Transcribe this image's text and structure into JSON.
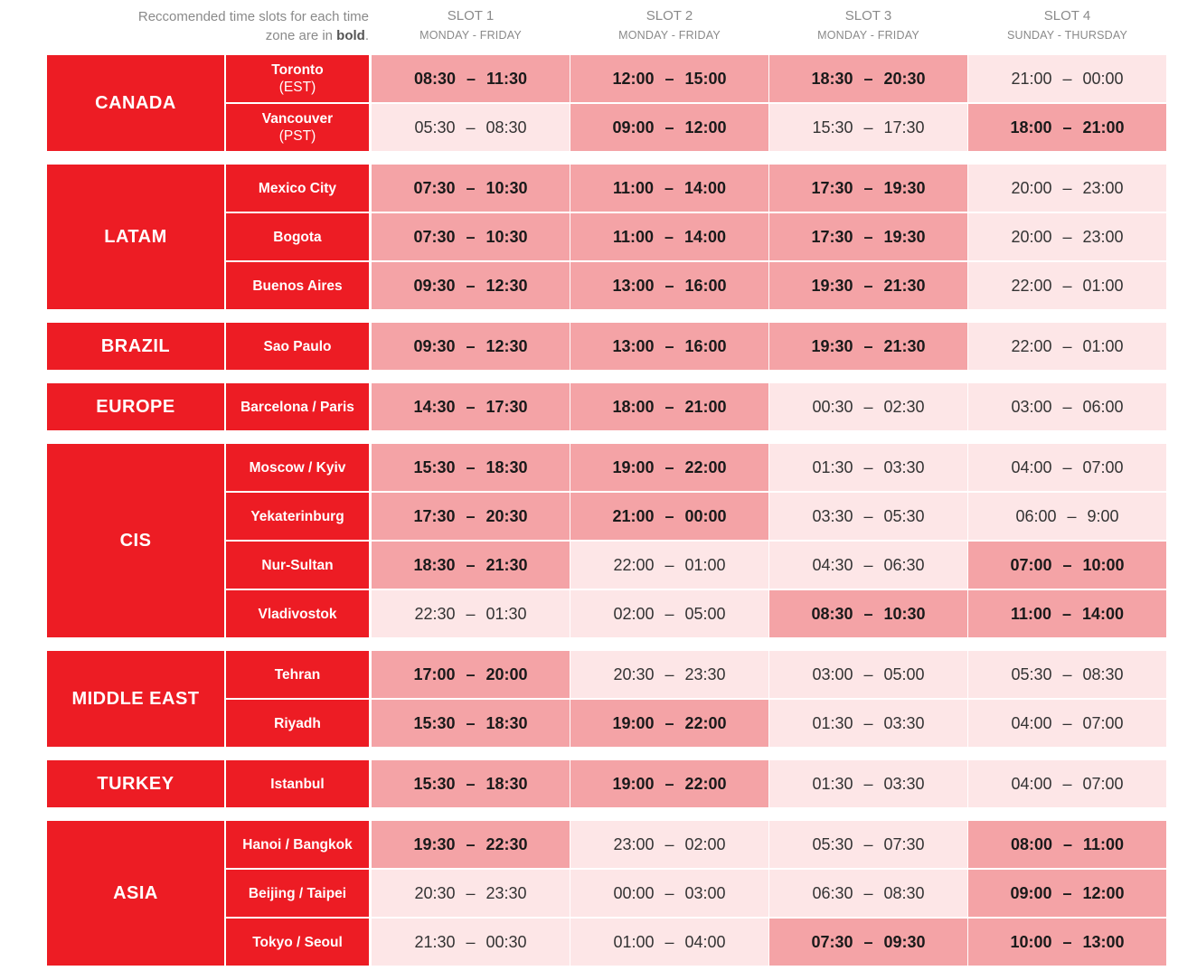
{
  "header": {
    "note_prefix": "Reccomended time slots for each time zone are in ",
    "note_bold": "bold",
    "note_suffix": ".",
    "slots": [
      {
        "title": "SLOT 1",
        "days": "MONDAY - FRIDAY"
      },
      {
        "title": "SLOT 2",
        "days": "MONDAY - FRIDAY"
      },
      {
        "title": "SLOT 3",
        "days": "MONDAY - FRIDAY"
      },
      {
        "title": "SLOT 4",
        "days": "SUNDAY - THURSDAY"
      }
    ]
  },
  "colors": {
    "region": "#ed1c24",
    "recommended": "#f4a3a6",
    "other": "#fde6e7"
  },
  "regions": [
    {
      "name": "CANADA",
      "cities": [
        {
          "name": "Toronto",
          "sub": "(EST)",
          "slots": [
            {
              "start": "08:30",
              "end": "11:30",
              "bold": true
            },
            {
              "start": "12:00",
              "end": "15:00",
              "bold": true
            },
            {
              "start": "18:30",
              "end": "20:30",
              "bold": true
            },
            {
              "start": "21:00",
              "end": "00:00",
              "bold": false
            }
          ]
        },
        {
          "name": "Vancouver",
          "sub": "(PST)",
          "slots": [
            {
              "start": "05:30",
              "end": "08:30",
              "bold": false
            },
            {
              "start": "09:00",
              "end": "12:00",
              "bold": true
            },
            {
              "start": "15:30",
              "end": "17:30",
              "bold": false
            },
            {
              "start": "18:00",
              "end": "21:00",
              "bold": true
            }
          ]
        }
      ]
    },
    {
      "name": "LATAM",
      "cities": [
        {
          "name": "Mexico City",
          "slots": [
            {
              "start": "07:30",
              "end": "10:30",
              "bold": true
            },
            {
              "start": "11:00",
              "end": "14:00",
              "bold": true
            },
            {
              "start": "17:30",
              "end": "19:30",
              "bold": true
            },
            {
              "start": "20:00",
              "end": "23:00",
              "bold": false
            }
          ]
        },
        {
          "name": "Bogota",
          "slots": [
            {
              "start": "07:30",
              "end": "10:30",
              "bold": true
            },
            {
              "start": "11:00",
              "end": "14:00",
              "bold": true
            },
            {
              "start": "17:30",
              "end": "19:30",
              "bold": true
            },
            {
              "start": "20:00",
              "end": "23:00",
              "bold": false
            }
          ]
        },
        {
          "name": "Buenos Aires",
          "slots": [
            {
              "start": "09:30",
              "end": "12:30",
              "bold": true
            },
            {
              "start": "13:00",
              "end": "16:00",
              "bold": true
            },
            {
              "start": "19:30",
              "end": "21:30",
              "bold": true
            },
            {
              "start": "22:00",
              "end": "01:00",
              "bold": false
            }
          ]
        }
      ]
    },
    {
      "name": "BRAZIL",
      "cities": [
        {
          "name": "Sao Paulo",
          "slots": [
            {
              "start": "09:30",
              "end": "12:30",
              "bold": true
            },
            {
              "start": "13:00",
              "end": "16:00",
              "bold": true
            },
            {
              "start": "19:30",
              "end": "21:30",
              "bold": true
            },
            {
              "start": "22:00",
              "end": "01:00",
              "bold": false
            }
          ]
        }
      ]
    },
    {
      "name": "EUROPE",
      "cities": [
        {
          "name": "Barcelona / Paris",
          "slots": [
            {
              "start": "14:30",
              "end": "17:30",
              "bold": true
            },
            {
              "start": "18:00",
              "end": "21:00",
              "bold": true
            },
            {
              "start": "00:30",
              "end": "02:30",
              "bold": false
            },
            {
              "start": "03:00",
              "end": "06:00",
              "bold": false
            }
          ]
        }
      ]
    },
    {
      "name": "CIS",
      "cities": [
        {
          "name": "Moscow / Kyiv",
          "slots": [
            {
              "start": "15:30",
              "end": "18:30",
              "bold": true
            },
            {
              "start": "19:00",
              "end": "22:00",
              "bold": true
            },
            {
              "start": "01:30",
              "end": "03:30",
              "bold": false
            },
            {
              "start": "04:00",
              "end": "07:00",
              "bold": false
            }
          ]
        },
        {
          "name": "Yekaterinburg",
          "slots": [
            {
              "start": "17:30",
              "end": "20:30",
              "bold": true
            },
            {
              "start": "21:00",
              "end": "00:00",
              "bold": true
            },
            {
              "start": "03:30",
              "end": "05:30",
              "bold": false
            },
            {
              "start": "06:00",
              "end": "9:00",
              "bold": false
            }
          ]
        },
        {
          "name": "Nur-Sultan",
          "slots": [
            {
              "start": "18:30",
              "end": "21:30",
              "bold": true
            },
            {
              "start": "22:00",
              "end": "01:00",
              "bold": false
            },
            {
              "start": "04:30",
              "end": "06:30",
              "bold": false
            },
            {
              "start": "07:00",
              "end": "10:00",
              "bold": true
            }
          ]
        },
        {
          "name": "Vladivostok",
          "slots": [
            {
              "start": "22:30",
              "end": "01:30",
              "bold": false
            },
            {
              "start": "02:00",
              "end": "05:00",
              "bold": false
            },
            {
              "start": "08:30",
              "end": "10:30",
              "bold": true
            },
            {
              "start": "11:00",
              "end": "14:00",
              "bold": true
            }
          ]
        }
      ]
    },
    {
      "name": "MIDDLE EAST",
      "cities": [
        {
          "name": "Tehran",
          "slots": [
            {
              "start": "17:00",
              "end": "20:00",
              "bold": true
            },
            {
              "start": "20:30",
              "end": "23:30",
              "bold": false
            },
            {
              "start": "03:00",
              "end": "05:00",
              "bold": false
            },
            {
              "start": "05:30",
              "end": "08:30",
              "bold": false
            }
          ]
        },
        {
          "name": "Riyadh",
          "slots": [
            {
              "start": "15:30",
              "end": "18:30",
              "bold": true
            },
            {
              "start": "19:00",
              "end": "22:00",
              "bold": true
            },
            {
              "start": "01:30",
              "end": "03:30",
              "bold": false
            },
            {
              "start": "04:00",
              "end": "07:00",
              "bold": false
            }
          ]
        }
      ]
    },
    {
      "name": "TURKEY",
      "cities": [
        {
          "name": "Istanbul",
          "slots": [
            {
              "start": "15:30",
              "end": "18:30",
              "bold": true
            },
            {
              "start": "19:00",
              "end": "22:00",
              "bold": true
            },
            {
              "start": "01:30",
              "end": "03:30",
              "bold": false
            },
            {
              "start": "04:00",
              "end": "07:00",
              "bold": false
            }
          ]
        }
      ]
    },
    {
      "name": "ASIA",
      "cities": [
        {
          "name": "Hanoi / Bangkok",
          "slots": [
            {
              "start": "19:30",
              "end": "22:30",
              "bold": true
            },
            {
              "start": "23:00",
              "end": "02:00",
              "bold": false
            },
            {
              "start": "05:30",
              "end": "07:30",
              "bold": false
            },
            {
              "start": "08:00",
              "end": "11:00",
              "bold": true
            }
          ]
        },
        {
          "name": "Beijing / Taipei",
          "slots": [
            {
              "start": "20:30",
              "end": "23:30",
              "bold": false
            },
            {
              "start": "00:00",
              "end": "03:00",
              "bold": false
            },
            {
              "start": "06:30",
              "end": "08:30",
              "bold": false
            },
            {
              "start": "09:00",
              "end": "12:00",
              "bold": true
            }
          ]
        },
        {
          "name": "Tokyo / Seoul",
          "slots": [
            {
              "start": "21:30",
              "end": "00:30",
              "bold": false
            },
            {
              "start": "01:00",
              "end": "04:00",
              "bold": false
            },
            {
              "start": "07:30",
              "end": "09:30",
              "bold": true
            },
            {
              "start": "10:00",
              "end": "13:00",
              "bold": true
            }
          ]
        }
      ]
    }
  ]
}
